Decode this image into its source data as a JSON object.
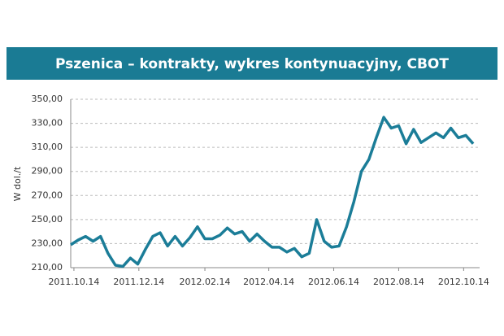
{
  "chart_data": {
    "type": "line",
    "title": "Pszenica – kontrakty, wykres kontynuacyjny, CBOT",
    "y_label": "W dol./t",
    "x": [
      "2011.10.11",
      "2011.10.18",
      "2011.10.25",
      "2011.11.01",
      "2011.11.08",
      "2011.11.15",
      "2011.11.22",
      "2011.11.29",
      "2011.12.06",
      "2011.12.13",
      "2011.12.20",
      "2011.12.27",
      "2012.01.03",
      "2012.01.10",
      "2012.01.17",
      "2012.01.24",
      "2012.01.31",
      "2012.02.07",
      "2012.02.14",
      "2012.02.21",
      "2012.02.28",
      "2012.03.06",
      "2012.03.13",
      "2012.03.20",
      "2012.03.27",
      "2012.04.03",
      "2012.04.10",
      "2012.04.17",
      "2012.04.24",
      "2012.05.01",
      "2012.05.08",
      "2012.05.15",
      "2012.05.22",
      "2012.05.29",
      "2012.06.05",
      "2012.06.12",
      "2012.06.19",
      "2012.06.26",
      "2012.07.03",
      "2012.07.10",
      "2012.07.17",
      "2012.07.24",
      "2012.07.31",
      "2012.08.07",
      "2012.08.14",
      "2012.08.21",
      "2012.08.28",
      "2012.09.04",
      "2012.09.11",
      "2012.09.18",
      "2012.09.25",
      "2012.10.02",
      "2012.10.09",
      "2012.10.16",
      "2012.10.23"
    ],
    "series": [
      {
        "name": "Pszenica",
        "color": "#1b7d98",
        "values": [
          229,
          233,
          236,
          232,
          236,
          222,
          212,
          211,
          218,
          213,
          225,
          236,
          239,
          228,
          236,
          228,
          235,
          244,
          234,
          234,
          237,
          243,
          238,
          240,
          232,
          238,
          232,
          227,
          227,
          223,
          226,
          219,
          222,
          250,
          232,
          227,
          228,
          244,
          265,
          290,
          300,
          318,
          335,
          326,
          328,
          313,
          325,
          314,
          318,
          322,
          318,
          326,
          318,
          320,
          313
        ]
      }
    ],
    "xlim": [
      "2011.10.11",
      "2012.10.29"
    ],
    "xticks": [
      "2011.10.14",
      "2011.12.14",
      "2012.02.14",
      "2012.04.14",
      "2012.06.14",
      "2012.08.14",
      "2012.10.14"
    ],
    "ylim": [
      210,
      350
    ],
    "yticks": [
      {
        "value": 210,
        "label": "210,00"
      },
      {
        "value": 230,
        "label": "230,00"
      },
      {
        "value": 250,
        "label": "250,00"
      },
      {
        "value": 270,
        "label": "270,00"
      },
      {
        "value": 290,
        "label": "290,00"
      },
      {
        "value": 310,
        "label": "310,00"
      },
      {
        "value": 330,
        "label": "330,00"
      },
      {
        "value": 350,
        "label": "350,00"
      }
    ],
    "grid": true,
    "title_bar_color": "#1a7b94"
  }
}
